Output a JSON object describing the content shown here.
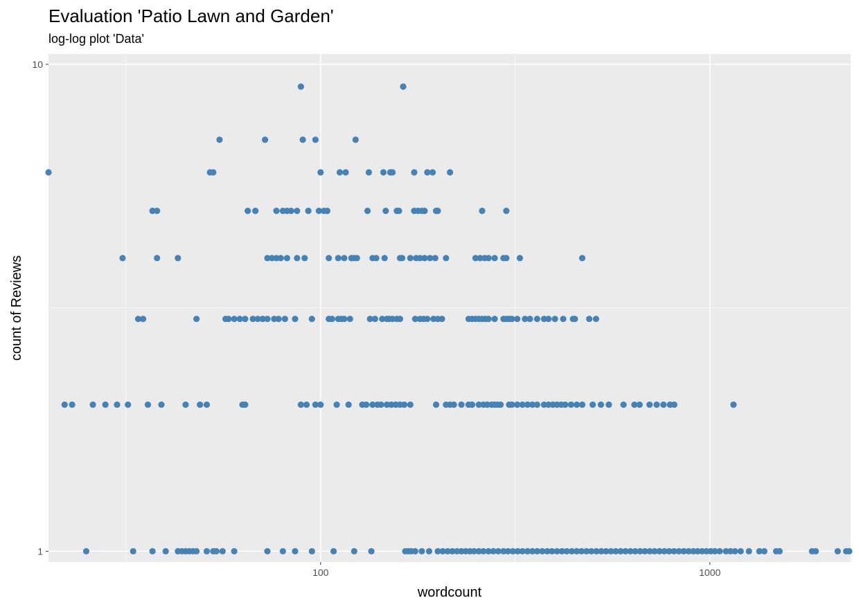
{
  "chart_data": {
    "type": "scatter",
    "title": "Evaluation 'Patio Lawn and Garden'",
    "subtitle": "log-log plot 'Data'",
    "xlabel": "wordcount",
    "ylabel": "count of Reviews",
    "x_scale": "log10",
    "y_scale": "log10",
    "xlim": [
      20,
      2300
    ],
    "ylim": [
      0.95,
      10.5
    ],
    "x_ticks": [
      {
        "value": 100,
        "label": "100"
      },
      {
        "value": 1000,
        "label": "1000"
      }
    ],
    "y_ticks": [
      {
        "value": 1,
        "label": "1"
      },
      {
        "value": 10,
        "label": "10"
      }
    ],
    "grid": true,
    "point_color": "#4682b4",
    "panel_color": "#ebebeb",
    "series": [
      {
        "y": 9,
        "x": [
          89,
          163
        ]
      },
      {
        "y": 7,
        "x": [
          55,
          72,
          90,
          97,
          123
        ]
      },
      {
        "y": 6,
        "x": [
          20,
          52,
          53,
          100,
          112,
          116,
          133,
          145,
          151,
          153,
          174,
          188,
          194,
          215
        ]
      },
      {
        "y": 5,
        "x": [
          37,
          38,
          65,
          68,
          77,
          80,
          82,
          84,
          87,
          93,
          99,
          102,
          104,
          132,
          147,
          157,
          159,
          174,
          178,
          182,
          185,
          198,
          200,
          260,
          300
        ]
      },
      {
        "y": 4,
        "x": [
          31,
          38,
          43,
          73,
          75,
          77,
          79,
          82,
          87,
          91,
          105,
          111,
          115,
          120,
          122,
          124,
          136,
          139,
          146,
          160,
          162,
          170,
          176,
          180,
          185,
          191,
          197,
          210,
          250,
          257,
          264,
          270,
          280,
          295,
          300,
          325,
          470
        ]
      },
      {
        "y": 3,
        "x": [
          34,
          35,
          48,
          57,
          58,
          60,
          62,
          64,
          67,
          69,
          71,
          73,
          76,
          78,
          81,
          86,
          95,
          105,
          107,
          111,
          113,
          115,
          119,
          134,
          138,
          144,
          148,
          150,
          153,
          157,
          160,
          175,
          180,
          184,
          188,
          195,
          200,
          205,
          240,
          245,
          250,
          255,
          260,
          265,
          270,
          280,
          295,
          300,
          305,
          310,
          320,
          335,
          345,
          360,
          375,
          385,
          400,
          420,
          445,
          450,
          490,
          510
        ]
      },
      {
        "y": 2,
        "x": [
          22,
          23,
          26,
          28,
          30,
          32,
          36,
          39,
          45,
          49,
          51,
          63,
          64,
          89,
          92,
          97,
          100,
          110,
          118,
          128,
          131,
          136,
          140,
          143,
          148,
          152,
          156,
          160,
          164,
          170,
          198,
          210,
          215,
          220,
          230,
          240,
          245,
          255,
          262,
          268,
          275,
          280,
          285,
          290,
          305,
          310,
          320,
          330,
          340,
          350,
          360,
          375,
          385,
          395,
          405,
          415,
          425,
          440,
          455,
          470,
          500,
          525,
          550,
          600,
          640,
          660,
          700,
          730,
          760,
          790,
          810,
          1150
        ]
      },
      {
        "y": 1,
        "x": [
          25,
          33,
          37,
          40,
          43,
          44,
          45,
          46,
          47,
          48,
          51,
          53,
          54,
          56,
          60,
          73,
          80,
          86,
          95,
          108,
          122,
          135,
          165,
          168,
          171,
          175,
          182,
          190,
          200,
          206,
          212,
          218,
          224,
          230,
          236,
          242,
          248,
          255,
          262,
          270,
          278,
          286,
          295,
          303,
          312,
          321,
          330,
          340,
          350,
          360,
          371,
          382,
          393,
          405,
          417,
          429,
          442,
          455,
          468,
          482,
          496,
          511,
          526,
          541,
          557,
          573,
          590,
          607,
          625,
          643,
          662,
          681,
          701,
          721,
          742,
          764,
          786,
          809,
          833,
          857,
          882,
          907,
          930,
          955,
          980,
          1005,
          1030,
          1060,
          1100,
          1130,
          1160,
          1200,
          1260,
          1340,
          1380,
          1480,
          1510,
          1830,
          1870,
          2130,
          2240,
          2280
        ]
      }
    ]
  }
}
